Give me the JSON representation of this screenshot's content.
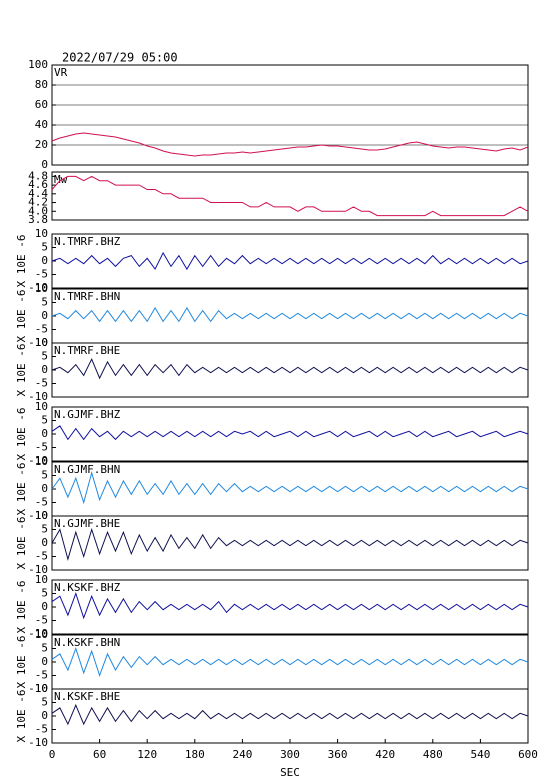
{
  "chart_data": {
    "type": "line",
    "title": "2022/07/29 05:00",
    "xlabel": "SEC",
    "xlim": [
      0,
      600
    ],
    "xticks": [
      0,
      60,
      120,
      180,
      240,
      300,
      360,
      420,
      480,
      540,
      600
    ],
    "x": [
      0,
      10,
      20,
      30,
      40,
      50,
      60,
      70,
      80,
      90,
      100,
      110,
      120,
      130,
      140,
      150,
      160,
      170,
      180,
      190,
      200,
      210,
      220,
      230,
      240,
      250,
      260,
      270,
      280,
      290,
      300,
      310,
      320,
      330,
      340,
      350,
      360,
      370,
      380,
      390,
      400,
      410,
      420,
      430,
      440,
      450,
      460,
      470,
      480,
      490,
      500,
      510,
      520,
      530,
      540,
      550,
      560,
      570,
      580,
      590,
      600
    ],
    "series": [
      {
        "name": "VR",
        "color": "#d0104c",
        "ylim": [
          0,
          100
        ],
        "yticks": [
          0,
          20,
          40,
          60,
          80,
          100
        ],
        "grid": true,
        "values": [
          24,
          27,
          29,
          31,
          32,
          31,
          30,
          29,
          28,
          26,
          24,
          22,
          19,
          17,
          14,
          12,
          11,
          10,
          9,
          10,
          10,
          11,
          12,
          12,
          13,
          12,
          13,
          14,
          15,
          16,
          17,
          18,
          18,
          19,
          20,
          19,
          19,
          18,
          17,
          16,
          15,
          15,
          16,
          18,
          20,
          22,
          23,
          21,
          19,
          18,
          17,
          18,
          18,
          17,
          16,
          15,
          14,
          16,
          17,
          15,
          18
        ]
      },
      {
        "name": "Mw",
        "color": "#d0104c",
        "ylim": [
          3.8,
          4.9
        ],
        "yticks": [
          3.8,
          {
            "value": 4,
            "label": "4.0"
          },
          4.2,
          4.4,
          4.6,
          4.8
        ],
        "values": [
          4.5,
          4.7,
          4.8,
          4.8,
          4.7,
          4.8,
          4.7,
          4.7,
          4.6,
          4.6,
          4.6,
          4.6,
          4.5,
          4.5,
          4.4,
          4.4,
          4.3,
          4.3,
          4.3,
          4.3,
          4.2,
          4.2,
          4.2,
          4.2,
          4.2,
          4.1,
          4.1,
          4.2,
          4.1,
          4.1,
          4.1,
          4.0,
          4.1,
          4.1,
          4.0,
          4.0,
          4.0,
          4.0,
          4.1,
          4.0,
          4.0,
          3.9,
          3.9,
          3.9,
          3.9,
          3.9,
          3.9,
          3.9,
          4.0,
          3.9,
          3.9,
          3.9,
          3.9,
          3.9,
          3.9,
          3.9,
          3.9,
          3.9,
          4.0,
          4.1,
          4.0
        ]
      },
      {
        "name": "N.TMRF.BHZ",
        "color": "#1010a0",
        "ylim": [
          -10,
          10
        ],
        "yticks": [
          -10,
          -5,
          0,
          5,
          10
        ],
        "ylabel": "X 10E -6",
        "values": [
          0,
          1,
          -1,
          1,
          -1,
          2,
          -1,
          1,
          -2,
          1,
          2,
          -2,
          1,
          -3,
          3,
          -2,
          2,
          -3,
          2,
          -2,
          2,
          -2,
          1,
          -1,
          2,
          -1,
          1,
          -1,
          1,
          -1,
          1,
          -1,
          1,
          -1,
          1,
          -1,
          1,
          -1,
          1,
          -1,
          1,
          -1,
          1,
          -1,
          1,
          -1,
          1,
          -1,
          2,
          -1,
          1,
          -1,
          1,
          -1,
          1,
          -1,
          1,
          -1,
          1,
          -1,
          0
        ]
      },
      {
        "name": "N.TMRF.BHN",
        "color": "#2088e0",
        "ylim": [
          -10,
          10
        ],
        "yticks": [
          -10,
          -5,
          0,
          5,
          10
        ],
        "ylabel": "X 10E -6",
        "values": [
          0,
          1,
          -1,
          2,
          -1,
          2,
          -2,
          2,
          -2,
          2,
          -2,
          2,
          -2,
          3,
          -2,
          2,
          -2,
          3,
          -2,
          2,
          -2,
          2,
          -1,
          1,
          -1,
          1,
          -1,
          1,
          -1,
          1,
          -1,
          1,
          -1,
          1,
          -1,
          1,
          -1,
          1,
          -1,
          1,
          -1,
          1,
          -1,
          1,
          -1,
          1,
          -1,
          1,
          -1,
          1,
          -1,
          1,
          -1,
          1,
          -1,
          1,
          -1,
          1,
          -1,
          1,
          0
        ]
      },
      {
        "name": "N.TMRF.BHE",
        "color": "#101050",
        "ylim": [
          -10,
          10
        ],
        "yticks": [
          -10,
          -5,
          0,
          5,
          10
        ],
        "ylabel": "X 10E -6",
        "values": [
          0,
          1,
          -1,
          2,
          -2,
          4,
          -3,
          3,
          -2,
          2,
          -2,
          2,
          -2,
          2,
          -1,
          2,
          -2,
          2,
          -1,
          1,
          -1,
          1,
          -1,
          1,
          -1,
          1,
          -1,
          1,
          -1,
          1,
          -1,
          1,
          -1,
          1,
          -1,
          1,
          -1,
          1,
          -1,
          1,
          -1,
          1,
          -1,
          1,
          -1,
          1,
          -1,
          1,
          -1,
          1,
          -1,
          1,
          -1,
          1,
          -1,
          1,
          -1,
          1,
          -1,
          1,
          0
        ]
      },
      {
        "name": "N.GJMF.BHZ",
        "color": "#1010a0",
        "ylim": [
          -10,
          10
        ],
        "yticks": [
          -10,
          -5,
          0,
          5,
          10
        ],
        "ylabel": "X 10E -6",
        "values": [
          1,
          3,
          -2,
          2,
          -2,
          2,
          -1,
          1,
          -2,
          1,
          -1,
          1,
          -1,
          1,
          -1,
          1,
          -1,
          1,
          -1,
          1,
          -1,
          1,
          -1,
          1,
          0,
          1,
          -1,
          1,
          -1,
          0,
          1,
          -1,
          1,
          -1,
          0,
          1,
          -1,
          1,
          -1,
          0,
          1,
          -1,
          1,
          -1,
          0,
          1,
          -1,
          1,
          -1,
          0,
          1,
          -1,
          0,
          1,
          -1,
          0,
          1,
          -1,
          0,
          1,
          0
        ]
      },
      {
        "name": "N.GJMF.BHN",
        "color": "#2088e0",
        "ylim": [
          -10,
          10
        ],
        "yticks": [
          -10,
          -5,
          0,
          5,
          10
        ],
        "ylabel": "X 10E -6",
        "values": [
          0,
          4,
          -3,
          4,
          -5,
          6,
          -4,
          3,
          -3,
          3,
          -2,
          3,
          -2,
          2,
          -2,
          3,
          -2,
          2,
          -2,
          2,
          -2,
          2,
          -1,
          2,
          -1,
          1,
          -1,
          1,
          -1,
          1,
          -1,
          1,
          -1,
          1,
          -1,
          1,
          -1,
          1,
          -1,
          1,
          -1,
          1,
          -1,
          1,
          -1,
          1,
          -1,
          1,
          -1,
          1,
          -1,
          1,
          -1,
          1,
          -1,
          1,
          -1,
          1,
          -1,
          1,
          0
        ]
      },
      {
        "name": "N.GJMF.BHE",
        "color": "#101050",
        "ylim": [
          -10,
          10
        ],
        "yticks": [
          -10,
          -5,
          0,
          5,
          10
        ],
        "ylabel": "X 10E -6",
        "values": [
          0,
          5,
          -6,
          4,
          -5,
          5,
          -4,
          4,
          -3,
          4,
          -4,
          3,
          -3,
          2,
          -3,
          3,
          -2,
          2,
          -2,
          3,
          -2,
          2,
          -1,
          1,
          -1,
          1,
          -1,
          1,
          -1,
          1,
          -1,
          1,
          -1,
          1,
          -1,
          1,
          -1,
          1,
          -1,
          1,
          -1,
          1,
          -1,
          1,
          -1,
          1,
          -1,
          1,
          -1,
          1,
          -1,
          1,
          -1,
          1,
          -1,
          1,
          -1,
          1,
          -1,
          1,
          0
        ]
      },
      {
        "name": "N.KSKF.BHZ",
        "color": "#1010a0",
        "ylim": [
          -10,
          10
        ],
        "yticks": [
          -10,
          -5,
          0,
          5,
          10
        ],
        "ylabel": "X 10E -6",
        "values": [
          2,
          4,
          -3,
          5,
          -4,
          4,
          -3,
          3,
          -2,
          3,
          -2,
          2,
          -1,
          2,
          -1,
          1,
          -1,
          1,
          -1,
          1,
          -1,
          2,
          -2,
          1,
          -1,
          1,
          -1,
          1,
          -1,
          1,
          -1,
          1,
          -1,
          1,
          -1,
          1,
          -1,
          1,
          -1,
          1,
          -1,
          1,
          -1,
          1,
          -1,
          1,
          -1,
          1,
          -1,
          1,
          -1,
          1,
          -1,
          1,
          -1,
          1,
          -1,
          1,
          -1,
          1,
          0
        ]
      },
      {
        "name": "N.KSKF.BHN",
        "color": "#2088e0",
        "ylim": [
          -10,
          10
        ],
        "yticks": [
          -10,
          -5,
          0,
          5,
          10
        ],
        "ylabel": "X 10E -6",
        "values": [
          1,
          3,
          -3,
          5,
          -4,
          4,
          -5,
          3,
          -3,
          2,
          -2,
          2,
          -1,
          2,
          -1,
          1,
          -1,
          1,
          -1,
          1,
          -1,
          1,
          -1,
          1,
          -1,
          1,
          -1,
          1,
          -1,
          1,
          -1,
          1,
          -1,
          1,
          -1,
          1,
          -1,
          1,
          -1,
          1,
          -1,
          1,
          -1,
          1,
          -1,
          1,
          -1,
          1,
          -1,
          1,
          -1,
          1,
          -1,
          1,
          -1,
          1,
          -1,
          1,
          -1,
          1,
          0
        ]
      },
      {
        "name": "N.KSKF.BHE",
        "color": "#101050",
        "ylim": [
          -10,
          10
        ],
        "yticks": [
          -10,
          -5,
          0,
          5,
          10
        ],
        "ylabel": "X 10E -6",
        "values": [
          1,
          3,
          -3,
          4,
          -3,
          3,
          -2,
          3,
          -2,
          2,
          -2,
          2,
          -1,
          2,
          -1,
          1,
          -1,
          1,
          -1,
          2,
          -1,
          1,
          -1,
          1,
          -1,
          1,
          -1,
          1,
          -1,
          1,
          -1,
          1,
          -1,
          1,
          -1,
          1,
          -1,
          1,
          -1,
          1,
          -1,
          1,
          -1,
          1,
          -1,
          1,
          -1,
          1,
          -1,
          1,
          -1,
          1,
          -1,
          1,
          -1,
          1,
          -1,
          1,
          -1,
          1,
          0
        ]
      }
    ]
  }
}
